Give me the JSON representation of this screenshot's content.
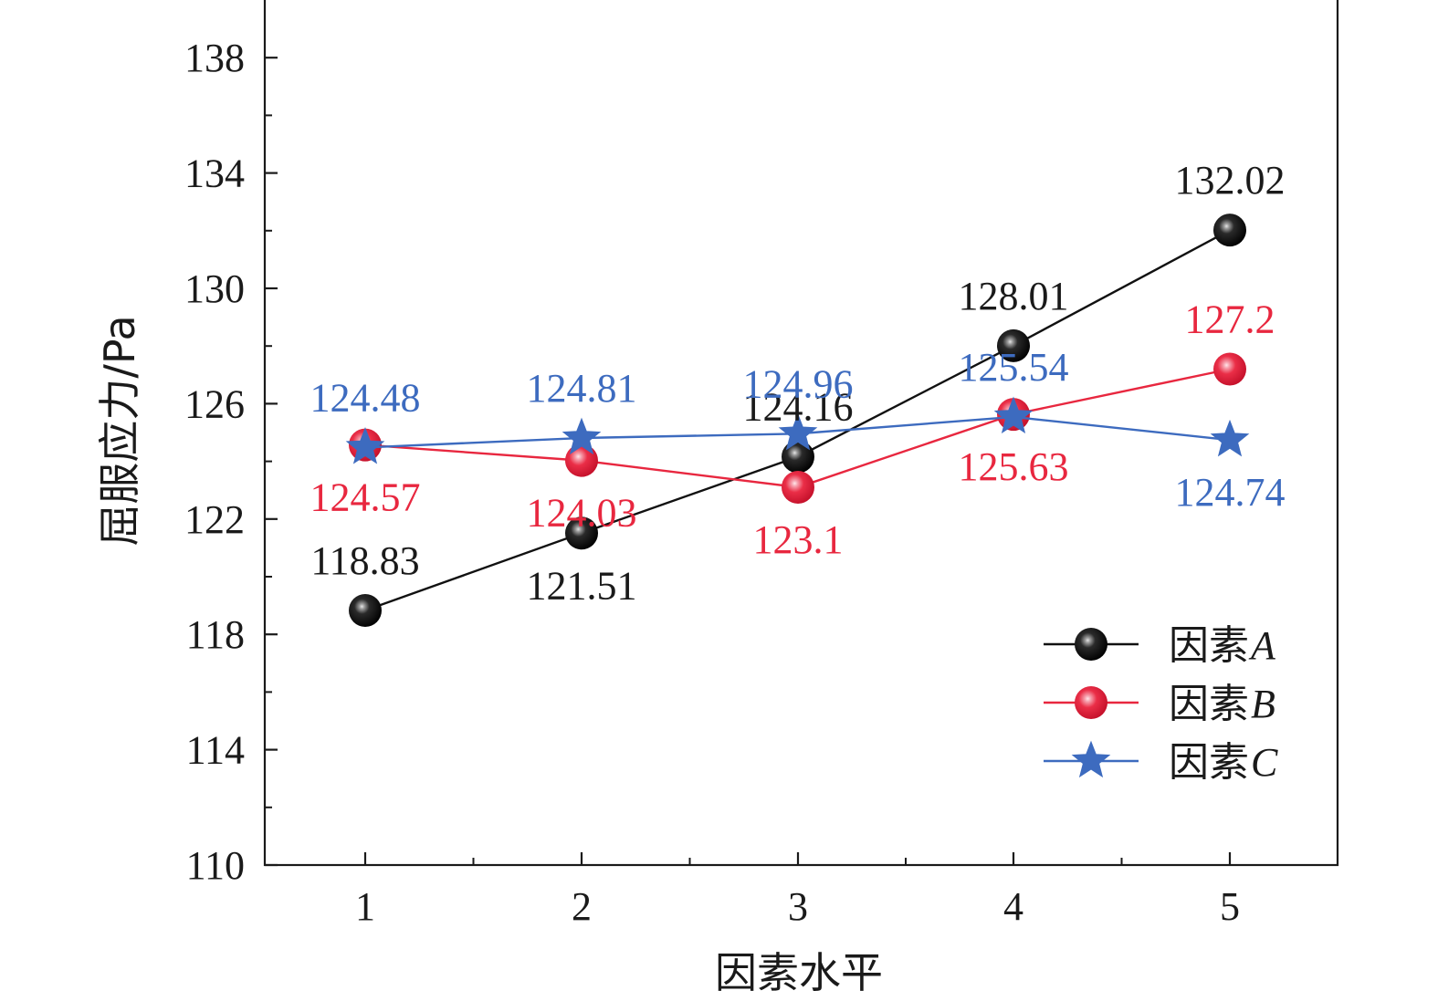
{
  "chart_data": {
    "type": "line",
    "xlabel": "因素水平",
    "ylabel": "屈服应力/Pa",
    "categories": [
      "1",
      "2",
      "3",
      "4",
      "5"
    ],
    "ylim": [
      110,
      140
    ],
    "yticks": [
      110,
      114,
      118,
      122,
      126,
      130,
      134,
      138
    ],
    "grid": false,
    "legend_position": "bottom-right",
    "series": [
      {
        "name": "因素 A",
        "legend_prefix": "因素",
        "legend_letter": "A",
        "color": "#111111",
        "marker": "sphere",
        "values": [
          118.83,
          121.51,
          124.16,
          128.01,
          132.02
        ],
        "labels": [
          "118.83",
          "121.51",
          "124.16",
          "128.01",
          "132.02"
        ],
        "label_side": [
          "above",
          "below",
          "above",
          "above",
          "above"
        ]
      },
      {
        "name": "因素 B",
        "legend_prefix": "因素",
        "legend_letter": "B",
        "color": "#e8273f",
        "marker": "sphere",
        "values": [
          124.57,
          124.03,
          123.1,
          125.63,
          127.2
        ],
        "labels": [
          "124.57",
          "124.03",
          "123.1",
          "125.63",
          "127.2"
        ],
        "label_side": [
          "below",
          "below",
          "below",
          "below",
          "above"
        ]
      },
      {
        "name": "因素 C",
        "legend_prefix": "因素",
        "legend_letter": "C",
        "color": "#3d6bbf",
        "marker": "star",
        "values": [
          124.48,
          124.81,
          124.96,
          125.54,
          124.74
        ],
        "labels": [
          "124.48",
          "124.81",
          "124.96",
          "125.54",
          "124.74"
        ],
        "label_side": [
          "above",
          "above",
          "above",
          "above",
          "below"
        ]
      }
    ]
  }
}
